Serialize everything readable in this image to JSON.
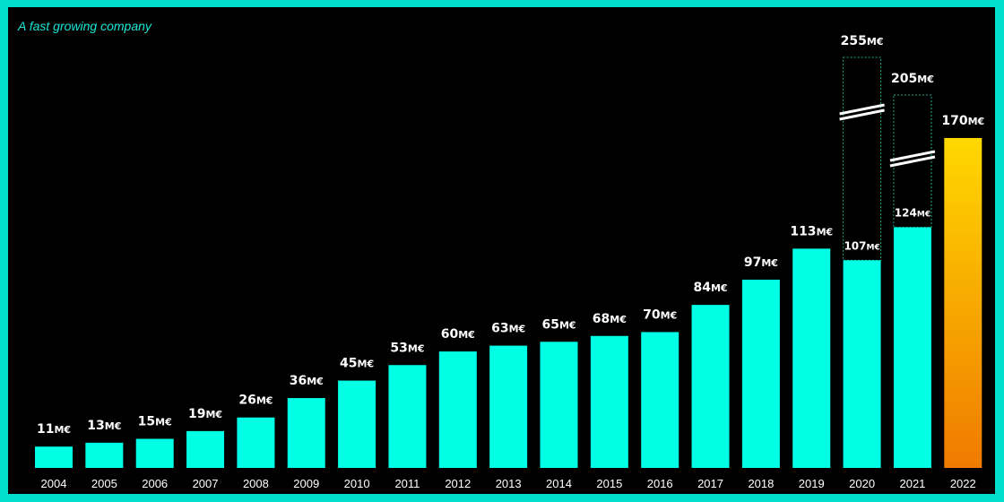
{
  "chart_data": {
    "type": "bar",
    "title": "A fast growing company",
    "categories": [
      "2004",
      "2005",
      "2006",
      "2007",
      "2008",
      "2009",
      "2010",
      "2011",
      "2012",
      "2013",
      "2014",
      "2015",
      "2016",
      "2017",
      "2018",
      "2019",
      "2020",
      "2021",
      "2022"
    ],
    "values": [
      11,
      13,
      15,
      19,
      26,
      36,
      45,
      53,
      60,
      63,
      65,
      68,
      70,
      84,
      97,
      113,
      107,
      124,
      170
    ],
    "labels": [
      "11M€",
      "13M€",
      "15M€",
      "19M€",
      "26M€",
      "36M€",
      "45M€",
      "53M€",
      "60M€",
      "63M€",
      "65M€",
      "68M€",
      "70M€",
      "84M€",
      "97M€",
      "113M€",
      "107M€",
      "124M€",
      "170M€"
    ],
    "potential": [
      {
        "year": "2020",
        "value": 255,
        "label": "255M€"
      },
      {
        "year": "2021",
        "value": 205,
        "label": "205M€"
      }
    ],
    "highlight": {
      "year": "2022",
      "label_color": "#ffe600",
      "gradient": [
        "#ffd800",
        "#f07a00"
      ]
    },
    "colors": {
      "bar": "#00ffe4",
      "frame": "#02e0cc",
      "background": "#000000",
      "potential_label": "#8a8a8a",
      "potential_outline": "#1fa88f"
    }
  }
}
